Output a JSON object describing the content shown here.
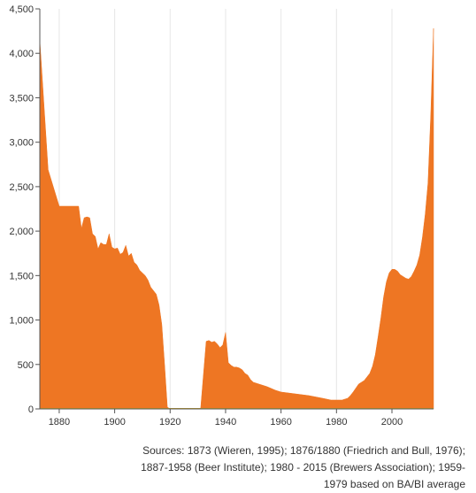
{
  "chart_data": {
    "type": "area",
    "title": "",
    "xlabel": "",
    "ylabel": "",
    "xlim": [
      1873,
      2015
    ],
    "ylim": [
      0,
      4500
    ],
    "x_ticks": [
      1880,
      1900,
      1920,
      1940,
      1960,
      1980,
      2000
    ],
    "x_tick_labels": [
      "1880",
      "1900",
      "1920",
      "1940",
      "1960",
      "1980",
      "2000"
    ],
    "y_ticks": [
      0,
      500,
      1000,
      1500,
      2000,
      2500,
      3000,
      3500,
      4000,
      4500
    ],
    "y_tick_labels": [
      "0",
      "500",
      "1,000",
      "1,500",
      "2,000",
      "2,500",
      "3,000",
      "3,500",
      "4,000",
      "4,500"
    ],
    "grid": "vertical",
    "legend": "none",
    "series": [
      {
        "color": "#EE7623",
        "x": [
          1873,
          1876,
          1880,
          1887,
          1888,
          1889,
          1890,
          1891,
          1892,
          1893,
          1894,
          1895,
          1896,
          1897,
          1898,
          1899,
          1900,
          1901,
          1902,
          1903,
          1904,
          1905,
          1906,
          1907,
          1908,
          1909,
          1910,
          1911,
          1912,
          1913,
          1914,
          1915,
          1916,
          1917,
          1918,
          1919,
          1920,
          1921,
          1931,
          1932,
          1933,
          1934,
          1935,
          1936,
          1937,
          1938,
          1939,
          1940,
          1941,
          1942,
          1943,
          1944,
          1945,
          1946,
          1947,
          1948,
          1949,
          1950,
          1955,
          1958,
          1960,
          1965,
          1970,
          1975,
          1978,
          1980,
          1982,
          1984,
          1985,
          1986,
          1988,
          1990,
          1991,
          1992,
          1993,
          1994,
          1995,
          1996,
          1997,
          1998,
          1999,
          2000,
          2001,
          2002,
          2003,
          2004,
          2005,
          2006,
          2007,
          2008,
          2009,
          2010,
          2011,
          2012,
          2013,
          2014,
          2015
        ],
        "values": [
          4150,
          2690,
          2280,
          2280,
          2030,
          2150,
          2160,
          2150,
          1970,
          1940,
          1800,
          1870,
          1850,
          1850,
          1970,
          1820,
          1800,
          1810,
          1740,
          1760,
          1840,
          1720,
          1750,
          1650,
          1620,
          1560,
          1530,
          1500,
          1450,
          1370,
          1330,
          1290,
          1170,
          950,
          500,
          20,
          0,
          0,
          0,
          380,
          760,
          770,
          750,
          760,
          730,
          690,
          720,
          860,
          520,
          490,
          470,
          470,
          460,
          440,
          400,
          380,
          330,
          300,
          250,
          210,
          190,
          170,
          150,
          120,
          100,
          100,
          100,
          120,
          150,
          190,
          280,
          320,
          360,
          400,
          480,
          610,
          810,
          1020,
          1260,
          1430,
          1530,
          1570,
          1570,
          1550,
          1510,
          1490,
          1470,
          1460,
          1490,
          1550,
          1620,
          1730,
          1930,
          2190,
          2540,
          3310,
          4280
        ]
      }
    ]
  },
  "caption": {
    "line1": "Sources: 1873 (Wieren, 1995); 1876/1880 (Friedrich and Bull, 1976);",
    "line2": "1887-1958 (Beer Institute); 1980 - 2015 (Brewers Association); 1959-",
    "line3": "1979 based on BA/BI average"
  }
}
